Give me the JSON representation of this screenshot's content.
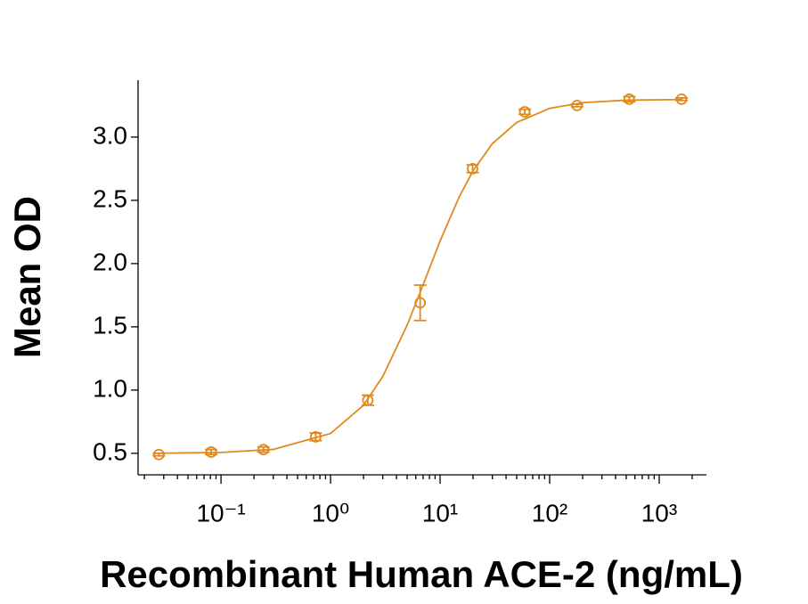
{
  "chart_data": {
    "type": "scatter",
    "xlabel": "Recombinant Human ACE-2 (ng/mL)",
    "ylabel": "Mean OD",
    "xscale": "log",
    "xlim": [
      0.0175,
      2700
    ],
    "ylim": [
      0.33,
      3.45
    ],
    "xticks": [
      {
        "value": 0.1,
        "label": "10⁻¹"
      },
      {
        "value": 1,
        "label": "10⁰"
      },
      {
        "value": 10,
        "label": "10¹"
      },
      {
        "value": 100,
        "label": "10²"
      },
      {
        "value": 1000,
        "label": "10³"
      }
    ],
    "xminorticks": [
      0.02,
      0.03,
      0.04,
      0.05,
      0.06,
      0.07,
      0.08,
      0.09,
      0.2,
      0.3,
      0.4,
      0.5,
      0.6,
      0.7,
      0.8,
      0.9,
      2,
      3,
      4,
      5,
      6,
      7,
      8,
      9,
      20,
      30,
      40,
      50,
      60,
      70,
      80,
      90,
      200,
      300,
      400,
      500,
      600,
      700,
      800,
      900,
      2000
    ],
    "yticks": [
      0.5,
      {
        "value": 1,
        "label": "1.0"
      },
      1.5,
      {
        "value": 2,
        "label": "2.0"
      },
      2.5,
      {
        "value": 3,
        "label": "3.0"
      }
    ],
    "color": "#e08a1e",
    "series": [
      {
        "x": [
          0.0271,
          0.0813,
          0.244,
          0.732,
          2.19,
          6.58,
          19.8,
          59.3,
          178,
          533,
          1600
        ],
        "values": [
          0.49,
          0.51,
          0.53,
          0.63,
          0.92,
          1.69,
          2.75,
          3.2,
          3.25,
          3.3,
          3.3
        ],
        "errors": [
          0.01,
          0.02,
          0.02,
          0.03,
          0.04,
          0.14,
          0.03,
          0.02,
          0.01,
          0.02,
          0.01
        ]
      }
    ],
    "curve": {
      "x": [
        0.0271,
        0.1,
        0.3,
        1,
        2,
        3,
        5,
        7,
        10,
        15,
        20,
        30,
        50,
        100,
        200,
        500,
        1600
      ],
      "values": [
        0.501,
        0.507,
        0.531,
        0.657,
        0.88,
        1.108,
        1.513,
        1.833,
        2.179,
        2.53,
        2.734,
        2.948,
        3.116,
        3.227,
        3.272,
        3.292,
        3.297
      ]
    }
  }
}
